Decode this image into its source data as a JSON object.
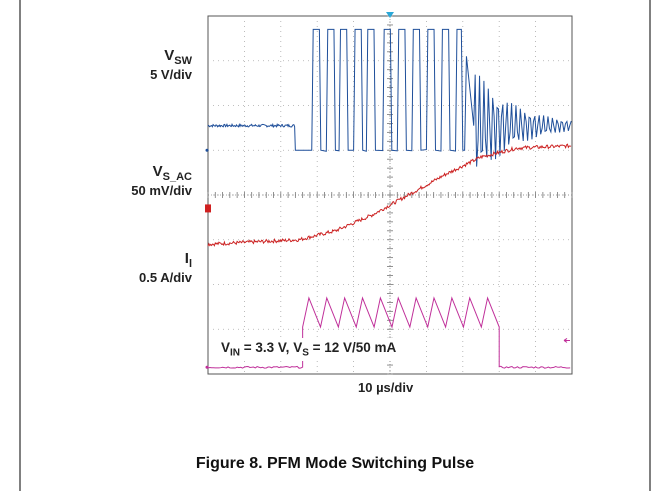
{
  "figure_caption": "Figure 8. PFM Mode Switching Pulse",
  "conditions": {
    "vin_label": "V",
    "vin_sub": "IN",
    "vin_val": " = 3.3 V, ",
    "vs_label": "V",
    "vs_sub": "S",
    "vs_val": " = 12 V/50 mA"
  },
  "time_scale": "10 µs/div",
  "channels": {
    "vsw": {
      "name": "V",
      "sub": "SW",
      "scale": "5 V/div",
      "color": "#1f4f9a"
    },
    "vsac": {
      "name": "V",
      "sub": "S_AC",
      "scale": "50 mV/div",
      "color": "#cc2222"
    },
    "il": {
      "name": "I",
      "sub": "l",
      "scale": "0.5 A/div",
      "color": "#c0309a"
    }
  },
  "chart_data": {
    "type": "line",
    "title": "",
    "xlabel": "10 µs/div",
    "grid": true,
    "x_divisions": 10,
    "y_divisions": 8,
    "series": [
      {
        "name": "VSW",
        "unit_per_div": "5 V/div",
        "idle_div": 5.55,
        "low_div": 5.0,
        "high_div": 7.7,
        "burst_start_div": 2.4,
        "pulses_div": [
          [
            2.85,
            3.1
          ],
          [
            3.25,
            3.5
          ],
          [
            3.6,
            3.85
          ],
          [
            4.0,
            4.25
          ],
          [
            4.35,
            4.6
          ],
          [
            4.8,
            5.05
          ],
          [
            5.2,
            5.45
          ],
          [
            5.6,
            5.85
          ],
          [
            6.0,
            6.25
          ],
          [
            6.4,
            6.65
          ],
          [
            6.8,
            7.0
          ]
        ],
        "ring_start_div": 7.3,
        "ring_end_div": 10.0
      },
      {
        "name": "VS_AC",
        "unit_per_div": "50 mV/div",
        "x_div": [
          0,
          2.5,
          3.5,
          4.5,
          5.5,
          6.5,
          7.5,
          8.5,
          10.0
        ],
        "y_div": [
          2.9,
          3.0,
          3.2,
          3.55,
          4.0,
          4.45,
          4.85,
          5.05,
          5.1
        ]
      },
      {
        "name": "IL",
        "unit_per_div": "0.5 A/div",
        "base_div": 0.15,
        "peak_div": 1.7,
        "ramp_start_div": 2.6,
        "ramp_end_div": 8.0,
        "ramps": 11
      }
    ]
  }
}
